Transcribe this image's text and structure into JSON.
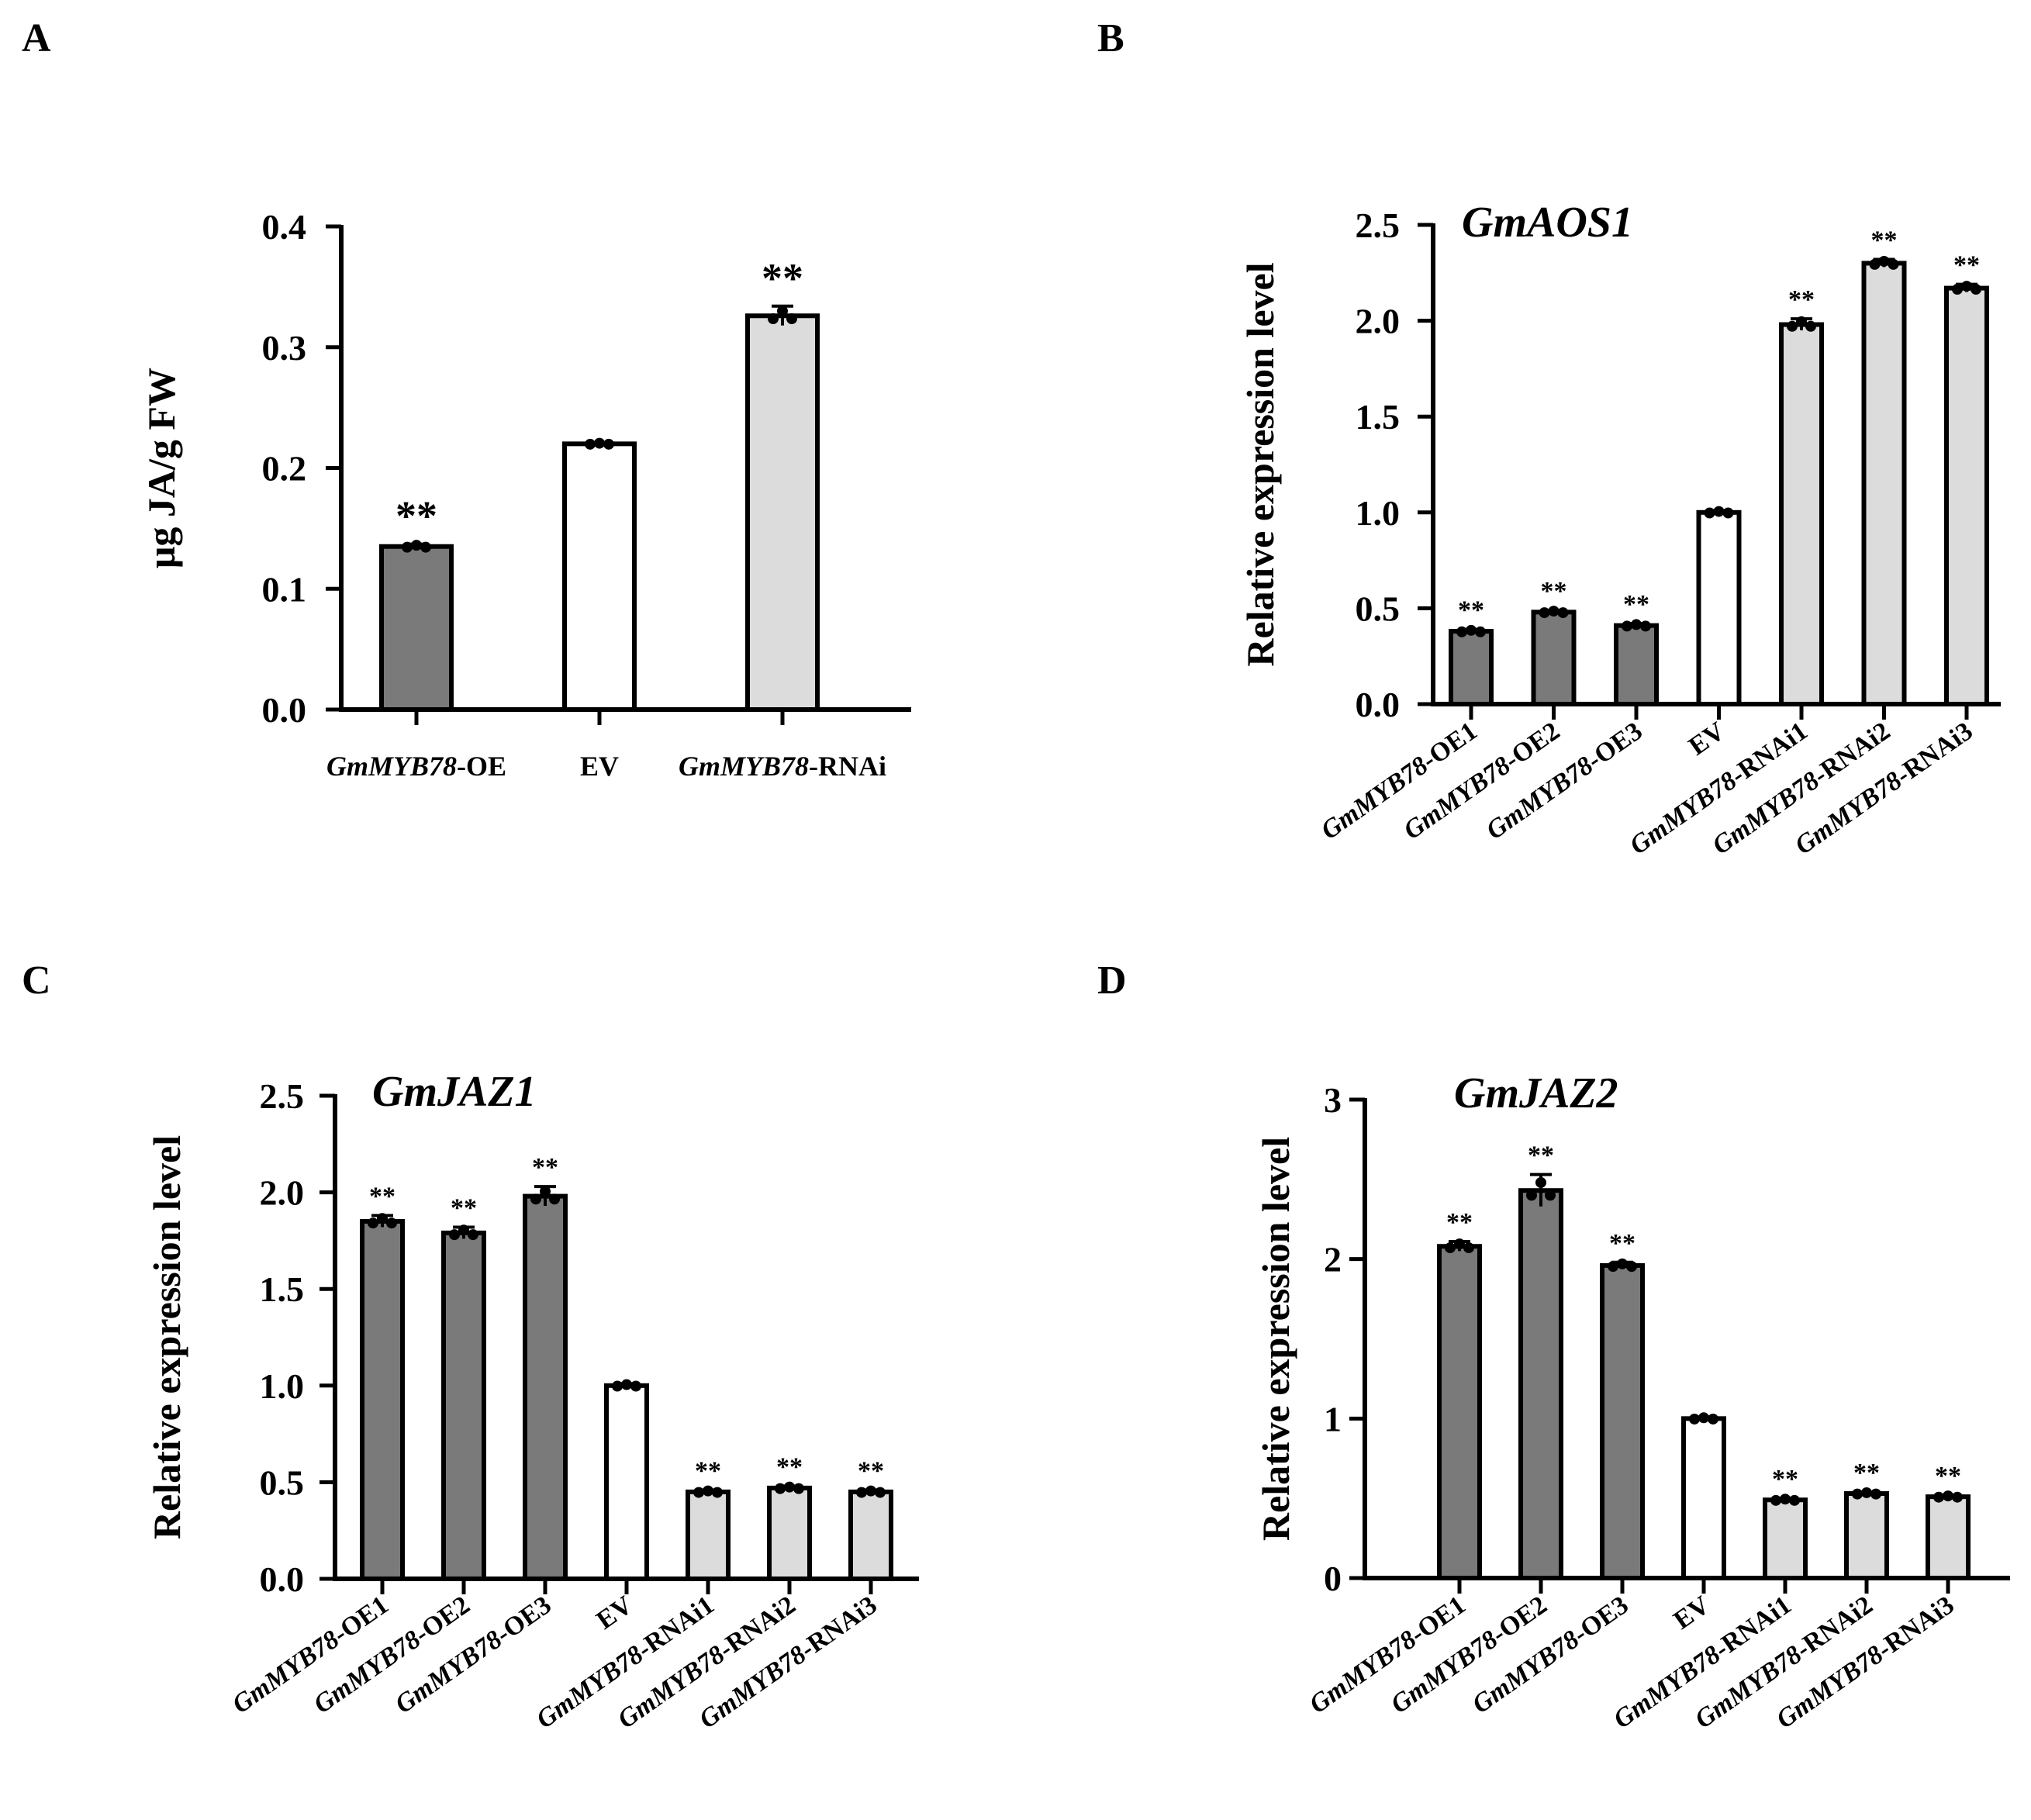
{
  "panels": {
    "A": "A",
    "B": "B",
    "C": "C",
    "D": "D"
  },
  "colors": {
    "oe": "#7a7a7a",
    "ev": "#ffffff",
    "rnai": "#dcdcdc",
    "axis": "#000000"
  },
  "chart_data": [
    {
      "id": "A",
      "type": "bar",
      "title": "",
      "ylabel": "μg JA/g FW",
      "ylim": [
        0,
        0.4
      ],
      "yticks": [
        "0.0",
        "0.1",
        "0.2",
        "0.3",
        "0.4"
      ],
      "ytick_values": [
        0,
        0.1,
        0.2,
        0.3,
        0.4
      ],
      "categories": [
        {
          "gene": "GmMYB78",
          "suffix": "-OE"
        },
        {
          "gene": "",
          "suffix": "EV"
        },
        {
          "gene": "GmMYB78",
          "suffix": "-RNAi"
        }
      ],
      "values": [
        0.135,
        0.22,
        0.326
      ],
      "errors": [
        0.002,
        0.001,
        0.008
      ],
      "groups": [
        "oe",
        "ev",
        "rnai"
      ],
      "significance": [
        "**",
        "",
        "**"
      ]
    },
    {
      "id": "B",
      "type": "bar",
      "title": "GmAOS1",
      "ylabel": "Relative expression level",
      "ylim": [
        0,
        2.5
      ],
      "yticks": [
        "0.0",
        "0.5",
        "1.0",
        "1.5",
        "2.0",
        "2.5"
      ],
      "ytick_values": [
        0,
        0.5,
        1.0,
        1.5,
        2.0,
        2.5
      ],
      "categories": [
        {
          "gene": "GmMYB78",
          "suffix": "-OE1"
        },
        {
          "gene": "GmMYB78",
          "suffix": "-OE2"
        },
        {
          "gene": "GmMYB78",
          "suffix": "-OE3"
        },
        {
          "gene": "",
          "suffix": "EV"
        },
        {
          "gene": "GmMYB78",
          "suffix": "-RNAi1"
        },
        {
          "gene": "GmMYB78",
          "suffix": "-RNAi2"
        },
        {
          "gene": "GmMYB78",
          "suffix": "-RNAi3"
        }
      ],
      "values": [
        0.38,
        0.48,
        0.41,
        1.0,
        1.98,
        2.3,
        2.17
      ],
      "errors": [
        0.01,
        0.01,
        0.01,
        0.01,
        0.03,
        0.02,
        0.02
      ],
      "groups": [
        "oe",
        "oe",
        "oe",
        "ev",
        "rnai",
        "rnai",
        "rnai"
      ],
      "significance": [
        "**",
        "**",
        "**",
        "",
        "**",
        "**",
        "**"
      ]
    },
    {
      "id": "C",
      "type": "bar",
      "title": "GmJAZ1",
      "ylabel": "Relative expression level",
      "ylim": [
        0,
        2.5
      ],
      "yticks": [
        "0.0",
        "0.5",
        "1.0",
        "1.5",
        "2.0",
        "2.5"
      ],
      "ytick_values": [
        0,
        0.5,
        1.0,
        1.5,
        2.0,
        2.5
      ],
      "categories": [
        {
          "gene": "GmMYB78",
          "suffix": "-OE1"
        },
        {
          "gene": "GmMYB78",
          "suffix": "-OE2"
        },
        {
          "gene": "GmMYB78",
          "suffix": "-OE3"
        },
        {
          "gene": "",
          "suffix": "EV"
        },
        {
          "gene": "GmMYB78",
          "suffix": "-RNAi1"
        },
        {
          "gene": "GmMYB78",
          "suffix": "-RNAi2"
        },
        {
          "gene": "GmMYB78",
          "suffix": "-RNAi3"
        }
      ],
      "values": [
        1.85,
        1.79,
        1.98,
        1.0,
        0.45,
        0.47,
        0.45
      ],
      "errors": [
        0.03,
        0.03,
        0.05,
        0.01,
        0.01,
        0.01,
        0.01
      ],
      "groups": [
        "oe",
        "oe",
        "oe",
        "ev",
        "rnai",
        "rnai",
        "rnai"
      ],
      "significance": [
        "**",
        "**",
        "**",
        "",
        "**",
        "**",
        "**"
      ]
    },
    {
      "id": "D",
      "type": "bar",
      "title": "GmJAZ2",
      "ylabel": "Relative expression level",
      "ylim": [
        0,
        3
      ],
      "yticks": [
        "0",
        "1",
        "2",
        "3"
      ],
      "ytick_values": [
        0,
        1,
        2,
        3
      ],
      "categories": [
        {
          "gene": "GmMYB78",
          "suffix": "-OE1"
        },
        {
          "gene": "GmMYB78",
          "suffix": "-OE2"
        },
        {
          "gene": "GmMYB78",
          "suffix": "-OE3"
        },
        {
          "gene": "",
          "suffix": "EV"
        },
        {
          "gene": "GmMYB78",
          "suffix": "-RNAi1"
        },
        {
          "gene": "GmMYB78",
          "suffix": "-RNAi2"
        },
        {
          "gene": "GmMYB78",
          "suffix": "-RNAi3"
        }
      ],
      "values": [
        2.08,
        2.43,
        1.96,
        1.0,
        0.49,
        0.53,
        0.51
      ],
      "errors": [
        0.03,
        0.1,
        0.02,
        0.01,
        0.01,
        0.01,
        0.01
      ],
      "groups": [
        "oe",
        "oe",
        "oe",
        "ev",
        "rnai",
        "rnai",
        "rnai"
      ],
      "significance": [
        "**",
        "**",
        "**",
        "",
        "**",
        "**",
        "**"
      ]
    }
  ]
}
